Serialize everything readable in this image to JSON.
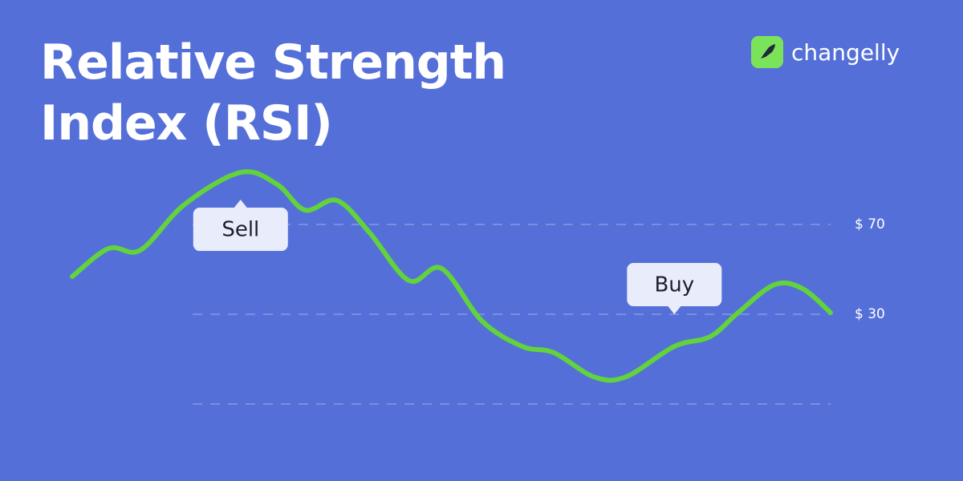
{
  "logo": "changelly",
  "chart_data": {
    "type": "line",
    "title": "Relative Strength Index (RSI)",
    "x": [
      0,
      4.8,
      9,
      14.8,
      22.2,
      27,
      30.7,
      34.9,
      39.2,
      44.4,
      48.7,
      54,
      59.3,
      63.5,
      68.8,
      73,
      79.4,
      84.1,
      87.8,
      92.6,
      96.3,
      100
    ],
    "values": [
      46.8,
      59.3,
      58.6,
      78.9,
      93.2,
      87.9,
      76.4,
      80.7,
      66.4,
      45,
      50.4,
      27.1,
      15.7,
      12.9,
      2.1,
      2.1,
      15.7,
      20,
      30.7,
      43.2,
      41.4,
      30.7
    ],
    "color": "#62d33b",
    "xlim": [
      0,
      100
    ],
    "ylim": [
      -20,
      110
    ],
    "yticks": [
      {
        "value": 70,
        "label": "$ 70"
      },
      {
        "value": 30,
        "label": "$ 30"
      },
      {
        "value": -10,
        "label": null
      }
    ],
    "grid": true,
    "annotations": [
      {
        "text": "Sell",
        "x": 22.2,
        "y": 93.2,
        "position": "below"
      },
      {
        "text": "Buy",
        "x": 79.4,
        "y": 15.7,
        "position": "above"
      }
    ]
  }
}
